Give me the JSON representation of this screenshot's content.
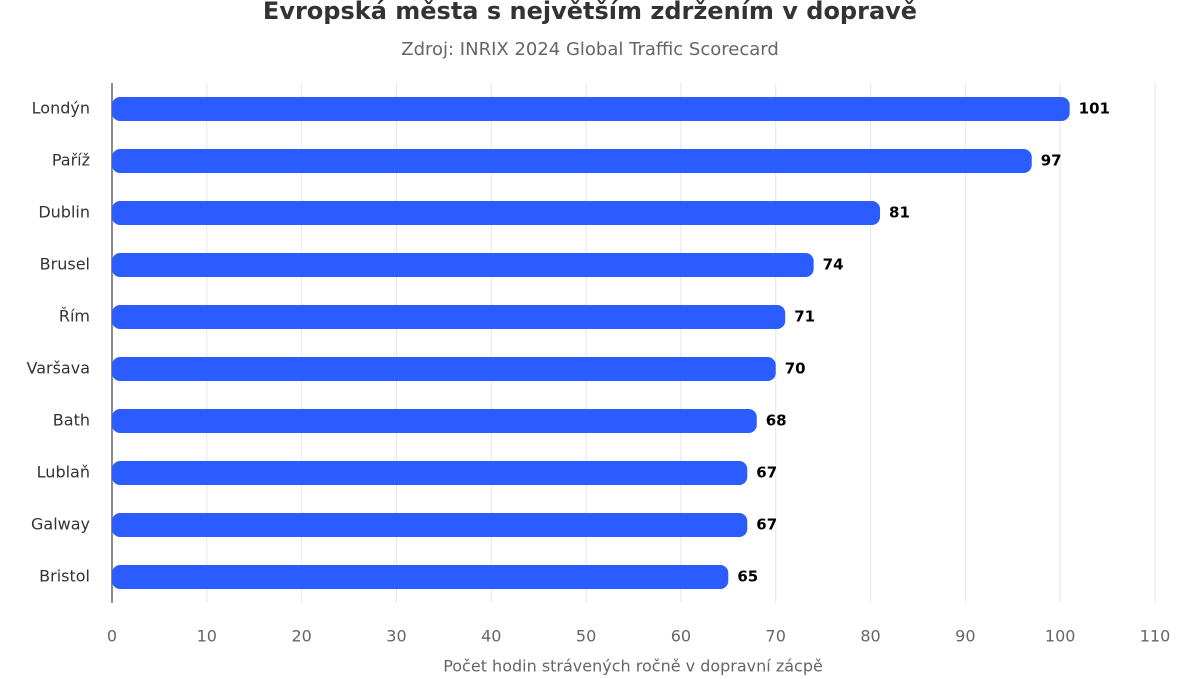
{
  "chart_data": {
    "type": "bar",
    "orientation": "horizontal",
    "title": "Evropská města s největším zdržením v dopravě",
    "subtitle": "Zdroj: INRIX 2024 Global Traffic Scorecard",
    "x_label": "Počet hodin strávených ročně v dopravní zácpě",
    "categories": [
      "Londýn",
      "Paříž",
      "Dublin",
      "Brusel",
      "Řím",
      "Varšava",
      "Bath",
      "Lublaň",
      "Galway",
      "Bristol"
    ],
    "values": [
      101,
      97,
      81,
      74,
      71,
      70,
      68,
      67,
      67,
      65
    ],
    "color": "#2a5cff",
    "xlim": [
      0,
      110
    ],
    "xticks": [
      0,
      10,
      20,
      30,
      40,
      50,
      60,
      70,
      80,
      90,
      100,
      110
    ],
    "grid": true
  }
}
